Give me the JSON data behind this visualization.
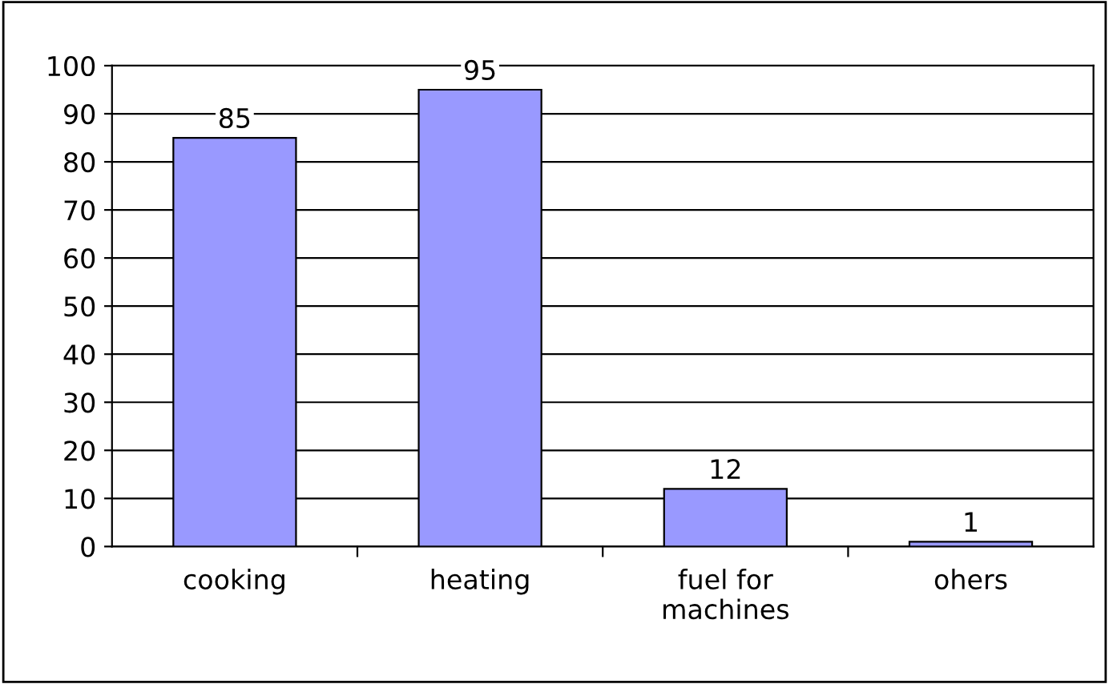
{
  "chart_data": {
    "type": "bar",
    "categories": [
      "cooking",
      "heating",
      "fuel for\nmachines",
      "ohers"
    ],
    "values": [
      85,
      95,
      12,
      1
    ],
    "color": "#9999ff",
    "ylim": [
      0,
      100
    ],
    "yticks": [
      0,
      10,
      20,
      30,
      40,
      50,
      60,
      70,
      80,
      90,
      100
    ],
    "grid": "y",
    "data_labels": true,
    "legend": false
  }
}
